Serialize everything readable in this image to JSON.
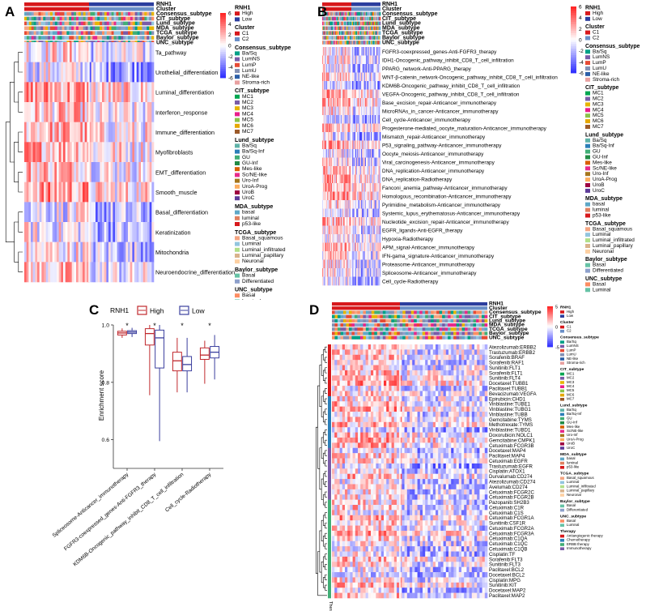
{
  "panels": [
    {
      "letter": "A",
      "annotation_tracks": [
        "RNH1",
        "Cluster",
        "Consensus_subtype",
        "CIT_subtype",
        "Lund_subtype",
        "MDA_subtype",
        "TCGA_subtype",
        "Baylor_subtype",
        "UNC_subtype"
      ],
      "scale": {
        "ticks": [
          "6",
          "4",
          "2",
          "0",
          "-2",
          "-4",
          "-6"
        ]
      },
      "rows": [
        "Ta_pathway",
        "Urothelial_differentiation",
        "Luminal_differentiation",
        "Interferon_response",
        "Immune_differentiation",
        "Myofibroblasts",
        "EMT_differentiation",
        "Smooth_muscle",
        "Basal_differentiation",
        "Keratinization",
        "Mitochondria",
        "Neuroendocrine_differentiation"
      ],
      "legend": [
        {
          "title": "RNH1",
          "items": [
            {
              "label": "High",
              "color": "#d7191c"
            },
            {
              "label": "Low",
              "color": "#2c3e9e"
            }
          ]
        },
        {
          "title": "Cluster",
          "items": [
            {
              "label": "C1",
              "color": "#d7191c"
            },
            {
              "label": "C2",
              "color": "#6a8fc7"
            }
          ]
        },
        {
          "title": "Consensus_subtype",
          "items": [
            {
              "label": "Ba/Sq",
              "color": "#00a087"
            },
            {
              "label": "LumNS",
              "color": "#7a5ca8"
            },
            {
              "label": "LumP",
              "color": "#e64b35"
            },
            {
              "label": "LumU",
              "color": "#8491b4"
            },
            {
              "label": "NE-like",
              "color": "#2c5fa8"
            },
            {
              "label": "Stroma-rich",
              "color": "#e8a0a0"
            }
          ]
        },
        {
          "title": "CIT_subtype",
          "items": [
            {
              "label": "MC1",
              "color": "#00a651"
            },
            {
              "label": "MC2",
              "color": "#7a5ca8"
            },
            {
              "label": "MC3",
              "color": "#e6b400"
            },
            {
              "label": "MC4",
              "color": "#e91e8c"
            },
            {
              "label": "MC5",
              "color": "#8bc34a"
            },
            {
              "label": "MC6",
              "color": "#e6a800"
            },
            {
              "label": "MC7",
              "color": "#9c5a2a"
            }
          ]
        },
        {
          "title": "Lund_subtype",
          "items": [
            {
              "label": "Ba/Sq",
              "color": "#5fb3a8"
            },
            {
              "label": "Ba/Sq-Inf",
              "color": "#2c7fb8"
            },
            {
              "label": "GU",
              "color": "#41ae76"
            },
            {
              "label": "GU-Inf",
              "color": "#238b45"
            },
            {
              "label": "Mes-like",
              "color": "#d95f02"
            },
            {
              "label": "Sc/NE-like",
              "color": "#e7298a"
            },
            {
              "label": "Uro-Inf",
              "color": "#a6761d"
            },
            {
              "label": "UroA-Prog",
              "color": "#fdae61"
            },
            {
              "label": "UroB",
              "color": "#9e0142"
            },
            {
              "label": "UroC",
              "color": "#5e3c99"
            }
          ]
        },
        {
          "title": "MDA_subtype",
          "items": [
            {
              "label": "basal",
              "color": "#5fa8c7"
            },
            {
              "label": "luminal",
              "color": "#e08060"
            },
            {
              "label": "p53-like",
              "color": "#d7191c"
            }
          ]
        },
        {
          "title": "TCGA_subtype",
          "items": [
            {
              "label": "Basal_squamous",
              "color": "#f4a582"
            },
            {
              "label": "Luminal",
              "color": "#92c5de"
            },
            {
              "label": "Luminal_infiltrated",
              "color": "#b2df8a"
            },
            {
              "label": "Luminal_papillary",
              "color": "#d9b38c"
            },
            {
              "label": "Neuronal",
              "color": "#fdd0a2"
            }
          ]
        },
        {
          "title": "Baylor_subtype",
          "items": [
            {
              "label": "Basal",
              "color": "#66c2a5"
            },
            {
              "label": "Differentiated",
              "color": "#8da0cb"
            }
          ]
        },
        {
          "title": "UNC_subtype",
          "items": [
            {
              "label": "Basal",
              "color": "#fc8d62"
            },
            {
              "label": "Luminal",
              "color": "#66c2a5"
            }
          ]
        }
      ]
    },
    {
      "letter": "B",
      "annotation_tracks": [
        "RNH1",
        "Cluster",
        "Consensus_subtype",
        "CIT_subtype",
        "Lund_subtype",
        "MDA_subtype",
        "TCGA_subtype",
        "Baylor_subtype",
        "UNC_subtype"
      ],
      "scale": {
        "ticks": [
          "6",
          "4",
          "2",
          "0",
          "-2",
          "-4",
          "-6"
        ]
      },
      "rows": [
        "FGFR3-coexpressed_genes-Anti-FGFR3_therapy",
        "IDH1-Oncogenic_pathway_inhibit_CD8_T_cell_infiltration",
        "PPARG_network-Anti-PPARG_therapy",
        "WNT-β-catenin_network-Oncogenic_pathway_inhibit_CD8_T_cell_infiltration",
        "KDM6B-Oncogenic_pathway_inhibit_CD8_T_cell_infiltration",
        "VEGFA-Oncogenic_pathway_inhibit_CD8_T_cell_infiltration",
        "Base_excision_repair-Anticancer_immunotherapy",
        "MicroRNAs_in_cancer-Anticancer_immunotherapy",
        "Cell_cycle-Anticancer_immunotherapy",
        "Progesterone-mediated_oocyte_maturation-Anticancer_immunotherapy",
        "Mismatch_repair-Anticancer_immunotherapy",
        "P53_signaling_pathway-Anticancer_immunotherapy",
        "Oocyte_meiosis-Anticancer_immunotherapy",
        "Viral_carcinogenesis-Anticancer_immunotherapy",
        "DNA_replication-Anticancer_immunotherapy",
        "DNA_replication-Radiotherapy",
        "Fanconi_anemia_pathway-Anticancer_immunotherapy",
        "Homologous_recombination-Anticancer_immunotherapy",
        "Pyrimidine_metabolism-Anticancer_immunotherapy",
        "Systemic_lupus_erythematosus-Anticancer_immunotherapy",
        "Nucleotide_excision_repair-Anticancer_immunotherapy",
        "EGFR_ligands-Anti-EGFR_therapy",
        "Hypoxia-Radiotherapy",
        "APM_signal-Anticancer_immunotherapy",
        "IFN-gama_signature-Anticancer_immunotherapy",
        "Proteasome-Anticancer_immunotherapy",
        "Spliceosome-Anticancer_immunotherapy",
        "Cell_cycle-Radiotherapy"
      ],
      "legend_same_as": "A"
    },
    {
      "letter": "C"
    },
    {
      "letter": "D",
      "annotation_tracks": [
        "RNH1",
        "Cluster",
        "Consensus_subtype",
        "CIT_subtype",
        "Lund_subtype",
        "MDA_subtype",
        "TCGA_subtype",
        "Baylor_subtype",
        "UNC_subtype"
      ],
      "bottom_track": "Therapy",
      "scale": {
        "ticks": [
          "5",
          "0",
          "-5"
        ]
      },
      "rows": [
        "Atezolizumab:ERBB2",
        "Trastuzumab:ERBB2",
        "Sorafenib:BRAF",
        "Sorafenib:RAF1",
        "Sunitinib:FLT1",
        "Sorafenib:FLT1",
        "Sunitinib:FLT4",
        "Docetaxel:TUBB1",
        "Paclitaxel:TUBB1",
        "Bevacizumab:VEGFA",
        "Epirubicin:CHD1",
        "Vinblastine:TUBE1",
        "Vinblastine:TUBG1",
        "Vinblastine:TUBB",
        "Gemcitabine:TYMS",
        "Methotrexate:TYMS",
        "Vinblastine:TUBD1",
        "Doxorubicin:NOLC1",
        "Gemcitabine:CMPK1",
        "Cetuximab:FCGR3B",
        "Docetaxel:MAP4",
        "Paclitaxel:MAP4",
        "Cetuximab:EGFR",
        "Trastuzumab:EGFR",
        "Cisplatin:ATOX1",
        "Durvalumab:CD274",
        "Atezolizumab:CD274",
        "Avelumab:CD274",
        "Cetuximab:FCGR2C",
        "Cetuximab:FCGR2B",
        "Pazopanib:SH2B3",
        "Cetuximab:C1R",
        "Cetuximab:C1S",
        "Cetuximab:FCGR1A",
        "Sunitinib:CSF1R",
        "Cetuximab:FCGR2A",
        "Cetuximab:FCGR3A",
        "Cetuximab:C1QA",
        "Cetuximab:C1QC",
        "Cetuximab:C1QB",
        "Cisplatin:TF",
        "Sorafenib:FLT3",
        "Sunitinib:FLT3",
        "Paclitaxel:BCL2",
        "Docetaxel:BCL2",
        "Cisplatin:MPG",
        "Sunitinib:KIT",
        "Docetaxel:MAP2",
        "Paclitaxel:MAP2"
      ],
      "legend_extra": {
        "title": "Therapy",
        "items": [
          {
            "label": "Antiangiogenic therapy",
            "color": "#d7191c"
          },
          {
            "label": "Chemotherapy",
            "color": "#2c7fb8"
          },
          {
            "label": "ERBB therapy",
            "color": "#41ae76"
          },
          {
            "label": "Immunotherapy",
            "color": "#7a5ca8"
          }
        ]
      }
    }
  ],
  "chart_data": [
    {
      "panel": "A",
      "type": "heatmap",
      "title": "",
      "row_labels": [
        "Ta_pathway",
        "Urothelial_differentiation",
        "Luminal_differentiation",
        "Interferon_response",
        "Immune_differentiation",
        "Myofibroblasts",
        "EMT_differentiation",
        "Smooth_muscle",
        "Basal_differentiation",
        "Keratinization",
        "Mitochondria",
        "Neuroendocrine_differentiation"
      ],
      "column_groups": [
        "High",
        "Low"
      ],
      "color_scale": {
        "min": -6,
        "max": 6,
        "low": "#2a2aa0",
        "mid": "#ffffff",
        "high": "#e01010"
      },
      "row_dendrogram": true
    },
    {
      "panel": "B",
      "type": "heatmap",
      "title": "",
      "row_labels_ref": "panels.1.rows",
      "column_groups": [
        "High",
        "Low"
      ],
      "color_scale": {
        "min": -6,
        "max": 6,
        "low": "#2a2aa0",
        "mid": "#ffffff",
        "high": "#e01010"
      },
      "row_dendrogram": true
    },
    {
      "panel": "C",
      "type": "box",
      "title": "",
      "legend_title": "RNH1",
      "legend_placement": "top",
      "ylabel": "Enrichment score",
      "xlabel": "",
      "ylim": [
        0.5,
        1.0
      ],
      "yticks": [
        0.6,
        0.8,
        1.0
      ],
      "yticklabels": [
        "0.6",
        "0.8",
        "1.0"
      ],
      "categories": [
        "Spliceosome-Anticancer_immunotherapy",
        "FGFR3-coexpressed_genes-Anti-FGFR3_therapy",
        "KDM6B-Oncogenic_pathway_inhibit_CD8_T_cell_infiltration",
        "Cell_cycle-Radiotherapy"
      ],
      "significance": [
        "*",
        "*",
        "*",
        "*"
      ],
      "series": [
        {
          "name": "High",
          "color": "#c0282d",
          "boxes": [
            {
              "min": 0.955,
              "q1": 0.965,
              "median": 0.972,
              "q3": 0.978,
              "max": 0.988
            },
            {
              "min": 0.755,
              "q1": 0.93,
              "median": 0.97,
              "q3": 0.987,
              "max": 1.0
            },
            {
              "min": 0.765,
              "q1": 0.84,
              "median": 0.875,
              "q3": 0.905,
              "max": 0.955
            },
            {
              "min": 0.795,
              "q1": 0.88,
              "median": 0.895,
              "q3": 0.92,
              "max": 0.945
            }
          ]
        },
        {
          "name": "Low",
          "color": "#3b3f9e",
          "boxes": [
            {
              "min": 0.958,
              "q1": 0.97,
              "median": 0.975,
              "q3": 0.98,
              "max": 0.99
            },
            {
              "min": 0.595,
              "q1": 0.85,
              "median": 0.955,
              "q3": 0.982,
              "max": 1.0
            },
            {
              "min": 0.765,
              "q1": 0.84,
              "median": 0.862,
              "q3": 0.89,
              "max": 0.955
            },
            {
              "min": 0.81,
              "q1": 0.885,
              "median": 0.905,
              "q3": 0.925,
              "max": 0.965
            }
          ]
        }
      ]
    },
    {
      "panel": "D",
      "type": "heatmap",
      "title": "",
      "row_labels_ref": "panels.3.rows",
      "column_groups": [
        "High",
        "Low"
      ],
      "color_scale": {
        "min": -5,
        "max": 5,
        "low": "#2a2aa0",
        "mid": "#ffffff",
        "high": "#e01010"
      },
      "row_dendrogram": true
    }
  ]
}
